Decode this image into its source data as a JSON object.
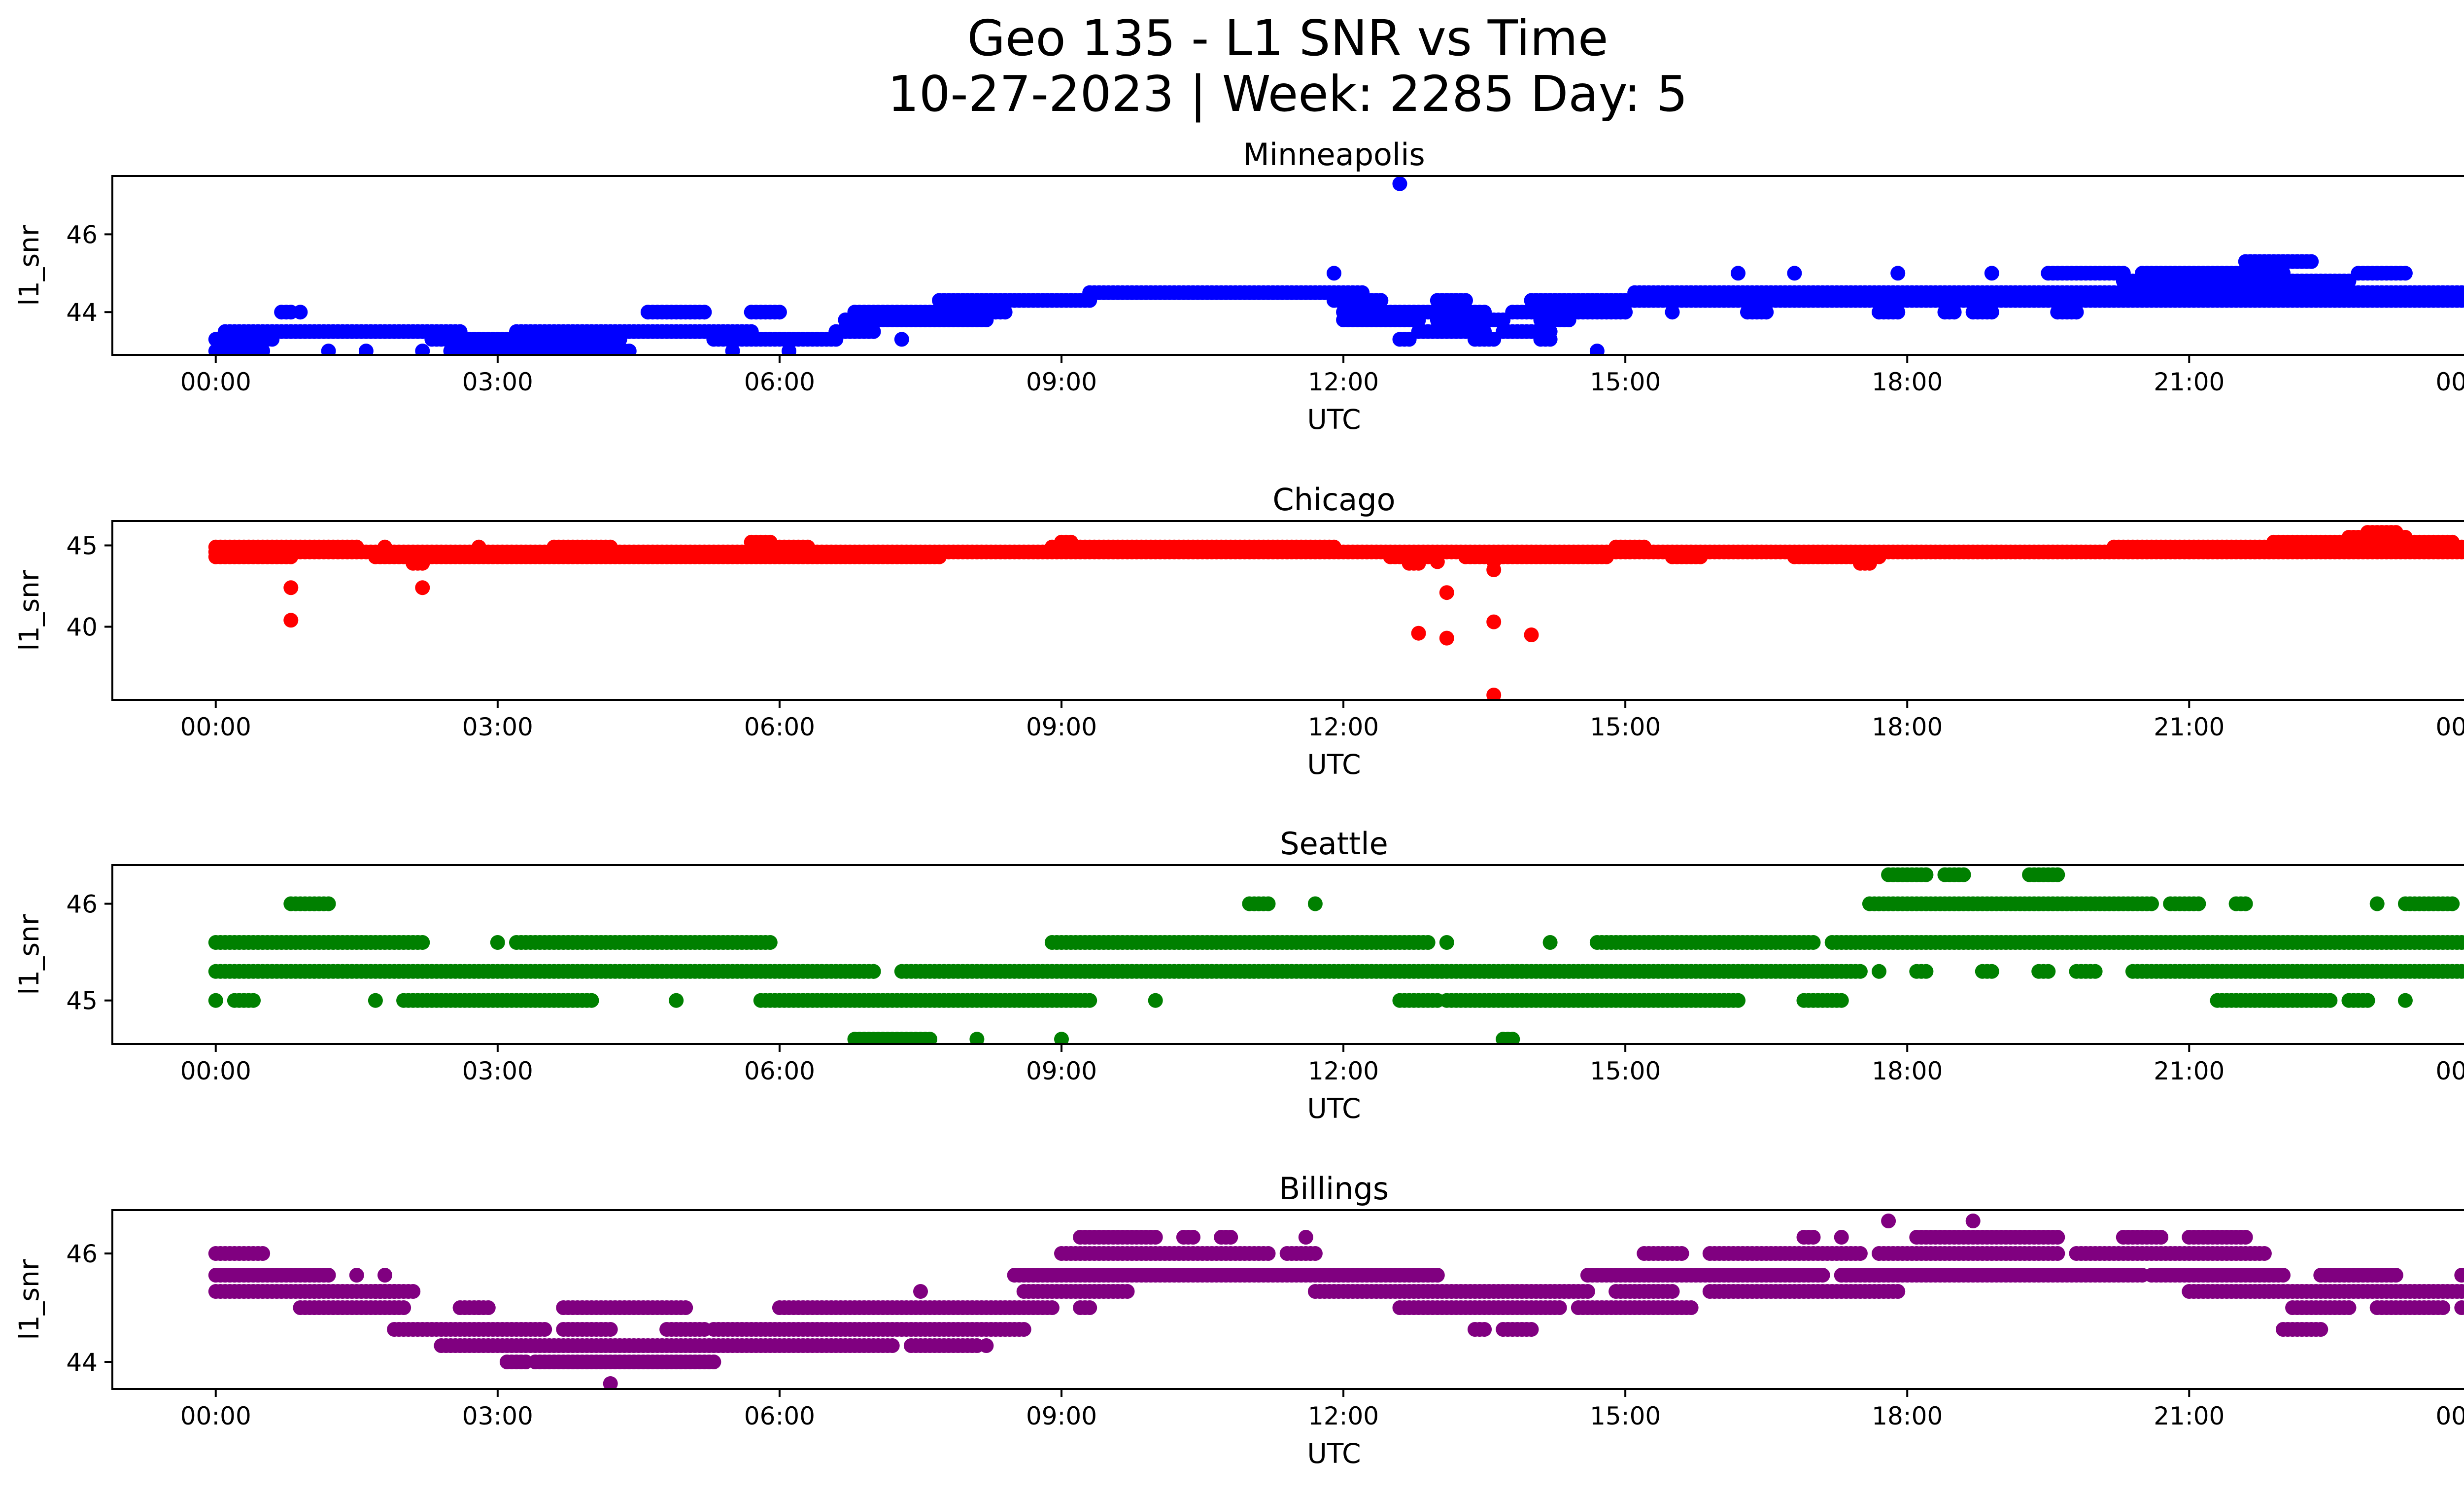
{
  "figure": {
    "title_line1": "Geo 135 - L1 SNR vs Time",
    "title_line2": "10-27-2023 | Week: 2285 Day: 5"
  },
  "chart_data": [
    {
      "type": "scatter",
      "title": "Minneapolis",
      "xlabel": "UTC",
      "ylabel": "l1_snr",
      "color": "#0000ff",
      "xlim": [
        -1.1,
        24.9
      ],
      "ylim": [
        42.9,
        47.5
      ],
      "xticks": [
        "00:00",
        "03:00",
        "06:00",
        "09:00",
        "12:00",
        "15:00",
        "18:00",
        "21:00",
        "00:00"
      ],
      "yticks": [
        44,
        46
      ],
      "series": {
        "levels": [
          {
            "y": 43.0,
            "ranges": [
              [
                0.0,
                0.5
              ],
              [
                1.2,
                1.2
              ],
              [
                1.6,
                1.6
              ],
              [
                2.2,
                2.2
              ],
              [
                2.5,
                4.4
              ],
              [
                5.5,
                5.5
              ],
              [
                6.1,
                6.1
              ]
            ]
          },
          {
            "y": 43.3,
            "ranges": [
              [
                0.0,
                0.6
              ],
              [
                2.3,
                4.3
              ],
              [
                5.3,
                6.6
              ],
              [
                7.3,
                7.3
              ],
              [
                12.6,
                12.7
              ],
              [
                13.4,
                13.6
              ],
              [
                14.1,
                14.2
              ]
            ]
          },
          {
            "y": 43.5,
            "ranges": [
              [
                0.1,
                2.6
              ],
              [
                3.2,
                5.7
              ],
              [
                6.6,
                7.0
              ],
              [
                12.8,
                13.5
              ],
              [
                13.7,
                14.2
              ]
            ]
          },
          {
            "y": 43.8,
            "ranges": [
              [
                6.7,
                8.2
              ],
              [
                12.0,
                12.8
              ],
              [
                13.0,
                13.7
              ],
              [
                14.1,
                14.4
              ]
            ]
          },
          {
            "y": 44.0,
            "ranges": [
              [
                0.7,
                0.8
              ],
              [
                4.6,
                5.2
              ],
              [
                5.7,
                6.0
              ],
              [
                6.8,
                8.4
              ],
              [
                12.0,
                13.5
              ],
              [
                13.8,
                15.0
              ],
              [
                15.5,
                15.5
              ],
              [
                16.3,
                16.5
              ],
              [
                17.7,
                17.9
              ],
              [
                18.4,
                18.5
              ],
              [
                18.7,
                18.9
              ],
              [
                19.6,
                19.8
              ]
            ]
          },
          {
            "y": 44.3,
            "ranges": [
              [
                7.7,
                9.3
              ],
              [
                11.9,
                12.4
              ],
              [
                13.0,
                13.3
              ],
              [
                14.0,
                24.0
              ]
            ]
          },
          {
            "y": 44.5,
            "ranges": [
              [
                9.3,
                12.2
              ],
              [
                15.1,
                24.0
              ]
            ]
          },
          {
            "y": 44.8,
            "ranges": [
              [
                20.3,
                22.7
              ]
            ]
          },
          {
            "y": 45.0,
            "ranges": [
              [
                11.9,
                11.9
              ],
              [
                16.2,
                16.2
              ],
              [
                16.8,
                16.8
              ],
              [
                17.9,
                17.9
              ],
              [
                18.9,
                18.9
              ],
              [
                19.5,
                20.3
              ],
              [
                20.5,
                22.0
              ],
              [
                22.8,
                23.3
              ]
            ]
          },
          {
            "y": 45.3,
            "ranges": [
              [
                21.6,
                22.3
              ]
            ]
          },
          {
            "y": 47.3,
            "ranges": [
              [
                12.6,
                12.6
              ]
            ]
          }
        ],
        "points": [
          [
            0.9,
            44.0
          ],
          [
            14.7,
            43.0
          ]
        ]
      }
    },
    {
      "type": "scatter",
      "title": "Chicago",
      "xlabel": "UTC",
      "ylabel": "l1_snr",
      "color": "#ff0000",
      "xlim": [
        -1.1,
        24.9
      ],
      "ylim": [
        35.5,
        46.5
      ],
      "xticks": [
        "00:00",
        "03:00",
        "06:00",
        "09:00",
        "12:00",
        "15:00",
        "18:00",
        "21:00",
        "00:00"
      ],
      "yticks": [
        40,
        45
      ],
      "series": {
        "levels": [
          {
            "y": 44.3,
            "ranges": [
              [
                0.0,
                0.8
              ],
              [
                1.7,
                2.2
              ],
              [
                2.3,
                7.7
              ],
              [
                12.5,
                13.0
              ],
              [
                13.3,
                14.8
              ],
              [
                15.5,
                15.8
              ],
              [
                16.8,
                17.7
              ]
            ]
          },
          {
            "y": 44.6,
            "ranges": [
              [
                0.0,
                24.0
              ]
            ]
          },
          {
            "y": 44.9,
            "ranges": [
              [
                0.0,
                1.5
              ],
              [
                1.8,
                1.8
              ],
              [
                2.8,
                2.8
              ],
              [
                3.6,
                4.2
              ],
              [
                5.7,
                6.3
              ],
              [
                8.9,
                11.9
              ],
              [
                14.9,
                15.2
              ],
              [
                20.2,
                24.0
              ]
            ]
          },
          {
            "y": 45.2,
            "ranges": [
              [
                5.7,
                5.9
              ],
              [
                9.0,
                9.1
              ],
              [
                21.9,
                22.8
              ],
              [
                23.1,
                23.8
              ]
            ]
          },
          {
            "y": 45.5,
            "ranges": [
              [
                22.7,
                23.3
              ]
            ]
          },
          {
            "y": 45.8,
            "ranges": [
              [
                22.9,
                23.2
              ]
            ]
          },
          {
            "y": 43.9,
            "ranges": [
              [
                2.1,
                2.2
              ],
              [
                12.7,
                12.8
              ],
              [
                17.5,
                17.6
              ]
            ]
          }
        ],
        "points": [
          [
            0.8,
            42.4
          ],
          [
            0.8,
            40.4
          ],
          [
            2.2,
            42.4
          ],
          [
            12.8,
            39.6
          ],
          [
            13.1,
            39.3
          ],
          [
            13.1,
            42.1
          ],
          [
            13.6,
            40.3
          ],
          [
            13.6,
            43.5
          ],
          [
            13.6,
            35.8
          ],
          [
            14.0,
            39.5
          ],
          [
            13.0,
            44.0
          ],
          [
            13.6,
            44.0
          ]
        ]
      }
    },
    {
      "type": "scatter",
      "title": "Seattle",
      "xlabel": "UTC",
      "ylabel": "l1_snr",
      "color": "#008000",
      "xlim": [
        -1.1,
        24.9
      ],
      "ylim": [
        44.55,
        46.4
      ],
      "xticks": [
        "00:00",
        "03:00",
        "06:00",
        "09:00",
        "12:00",
        "15:00",
        "18:00",
        "21:00",
        "00:00"
      ],
      "yticks": [
        45,
        46
      ],
      "series": {
        "levels": [
          {
            "y": 44.6,
            "ranges": [
              [
                6.8,
                7.6
              ],
              [
                8.1,
                8.1
              ],
              [
                9.0,
                9.0
              ],
              [
                13.7,
                13.8
              ]
            ]
          },
          {
            "y": 45.0,
            "ranges": [
              [
                0.0,
                0.0
              ],
              [
                0.2,
                0.4
              ],
              [
                1.7,
                1.7
              ],
              [
                2.0,
                4.0
              ],
              [
                4.9,
                4.9
              ],
              [
                5.8,
                9.3
              ],
              [
                10.0,
                10.0
              ],
              [
                12.6,
                13.0
              ],
              [
                13.1,
                16.2
              ],
              [
                16.9,
                17.3
              ],
              [
                21.3,
                22.5
              ],
              [
                22.7,
                22.9
              ],
              [
                23.3,
                23.3
              ]
            ]
          },
          {
            "y": 45.3,
            "ranges": [
              [
                0.0,
                7.0
              ],
              [
                7.3,
                17.5
              ],
              [
                18.1,
                18.2
              ],
              [
                18.8,
                18.9
              ],
              [
                19.4,
                19.5
              ],
              [
                19.8,
                20.0
              ],
              [
                20.4,
                24.0
              ]
            ]
          },
          {
            "y": 45.6,
            "ranges": [
              [
                0.0,
                2.2
              ],
              [
                3.0,
                3.0
              ],
              [
                3.2,
                5.9
              ],
              [
                8.9,
                12.9
              ],
              [
                13.1,
                13.1
              ],
              [
                14.2,
                14.2
              ],
              [
                14.7,
                16.0
              ],
              [
                16.0,
                17.0
              ],
              [
                17.2,
                24.0
              ]
            ]
          },
          {
            "y": 46.0,
            "ranges": [
              [
                0.8,
                1.2
              ],
              [
                11.0,
                11.2
              ],
              [
                11.7,
                11.7
              ],
              [
                17.6,
                20.6
              ],
              [
                20.8,
                21.1
              ],
              [
                21.5,
                21.6
              ],
              [
                23.0,
                23.0
              ],
              [
                23.3,
                23.8
              ]
            ]
          },
          {
            "y": 46.3,
            "ranges": [
              [
                17.8,
                18.2
              ],
              [
                18.4,
                18.6
              ],
              [
                19.3,
                19.6
              ]
            ]
          }
        ],
        "points": [
          [
            7.0,
            45.3
          ],
          [
            17.7,
            45.3
          ]
        ]
      }
    },
    {
      "type": "scatter",
      "title": "Billings",
      "xlabel": "UTC",
      "ylabel": "l1_snr",
      "color": "#800080",
      "xlim": [
        -1.1,
        24.9
      ],
      "ylim": [
        43.5,
        46.8
      ],
      "xticks": [
        "00:00",
        "03:00",
        "06:00",
        "09:00",
        "12:00",
        "15:00",
        "18:00",
        "21:00",
        "00:00"
      ],
      "yticks": [
        44,
        46
      ],
      "series": {
        "levels": [
          {
            "y": 43.6,
            "ranges": [
              [
                4.2,
                4.2
              ]
            ]
          },
          {
            "y": 44.0,
            "ranges": [
              [
                3.1,
                3.3
              ],
              [
                3.4,
                5.3
              ]
            ]
          },
          {
            "y": 44.3,
            "ranges": [
              [
                2.4,
                7.2
              ],
              [
                7.4,
                8.1
              ]
            ]
          },
          {
            "y": 44.6,
            "ranges": [
              [
                1.9,
                3.5
              ],
              [
                3.7,
                4.2
              ],
              [
                4.8,
                5.2
              ],
              [
                5.3,
                8.6
              ],
              [
                13.4,
                13.5
              ],
              [
                13.7,
                14.0
              ],
              [
                22.0,
                22.4
              ]
            ]
          },
          {
            "y": 45.0,
            "ranges": [
              [
                0.9,
                2.0
              ],
              [
                2.6,
                2.9
              ],
              [
                3.7,
                5.0
              ],
              [
                6.0,
                8.9
              ],
              [
                9.2,
                9.3
              ],
              [
                12.6,
                14.3
              ],
              [
                14.5,
                15.7
              ],
              [
                22.1,
                22.7
              ],
              [
                23.0,
                23.7
              ],
              [
                23.9,
                24.0
              ]
            ]
          },
          {
            "y": 45.3,
            "ranges": [
              [
                0.0,
                1.9
              ],
              [
                1.7,
                2.1
              ],
              [
                8.6,
                9.7
              ],
              [
                11.7,
                14.6
              ],
              [
                14.9,
                15.5
              ],
              [
                15.9,
                17.9
              ],
              [
                21.0,
                24.0
              ]
            ]
          },
          {
            "y": 45.6,
            "ranges": [
              [
                0.0,
                1.2
              ],
              [
                1.5,
                1.5
              ],
              [
                1.8,
                1.8
              ],
              [
                8.5,
                13.0
              ],
              [
                14.6,
                17.1
              ],
              [
                17.3,
                20.5
              ],
              [
                20.6,
                22.0
              ],
              [
                22.4,
                23.2
              ],
              [
                23.9,
                24.0
              ]
            ]
          },
          {
            "y": 46.0,
            "ranges": [
              [
                0.0,
                0.5
              ],
              [
                9.0,
                11.2
              ],
              [
                11.4,
                11.7
              ],
              [
                15.2,
                15.6
              ],
              [
                15.9,
                17.5
              ],
              [
                17.7,
                19.6
              ],
              [
                19.8,
                21.8
              ]
            ]
          },
          {
            "y": 46.3,
            "ranges": [
              [
                9.2,
                10.0
              ],
              [
                10.3,
                10.4
              ],
              [
                10.7,
                10.8
              ],
              [
                11.6,
                11.6
              ],
              [
                16.9,
                17.0
              ],
              [
                17.3,
                17.3
              ],
              [
                18.1,
                19.6
              ],
              [
                20.3,
                20.7
              ],
              [
                21.0,
                21.6
              ]
            ]
          },
          {
            "y": 46.6,
            "ranges": [
              [
                17.8,
                17.8
              ],
              [
                18.7,
                18.7
              ]
            ]
          }
        ],
        "points": [
          [
            7.5,
            45.3
          ],
          [
            8.2,
            44.3
          ],
          [
            2.8,
            45.0
          ]
        ]
      }
    }
  ]
}
